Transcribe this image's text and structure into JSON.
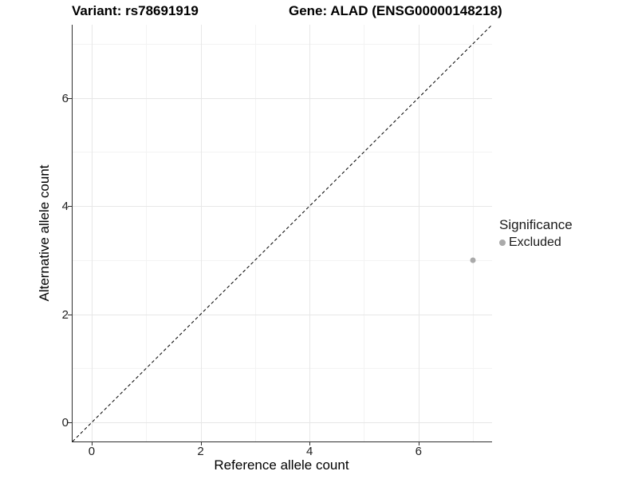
{
  "figure": {
    "title_left": "Variant: rs78691919",
    "title_right": "Gene: ALAD (ENSG00000148218)"
  },
  "chart_data": {
    "type": "scatter",
    "title": "Variant: rs78691919   Gene: ALAD (ENSG00000148218)",
    "xlabel": "Reference allele count",
    "ylabel": "Alternative allele count",
    "xlim": [
      -0.35,
      7.35
    ],
    "ylim": [
      -0.35,
      7.35
    ],
    "x_major_ticks": [
      0,
      2,
      4,
      6
    ],
    "y_major_ticks": [
      0,
      2,
      4,
      6
    ],
    "x_minor_ticks": [
      1,
      3,
      5,
      7
    ],
    "y_minor_ticks": [
      1,
      3,
      5,
      7
    ],
    "grid": true,
    "series": [
      {
        "name": "Excluded",
        "color": "#aaaaaa",
        "point_size": 7,
        "points": [
          {
            "x": 7,
            "y": 3
          }
        ]
      }
    ],
    "reference_line": {
      "type": "identity",
      "slope": 1,
      "intercept": 0,
      "style": "dashed",
      "color": "#000000"
    },
    "legend": {
      "title": "Significance",
      "position": "right",
      "items": [
        {
          "label": "Excluded",
          "color": "#aaaaaa"
        }
      ]
    },
    "colors": {
      "grid_major": "#e7e7e7",
      "grid_minor": "#f3f3f3",
      "axis_line": "#2f2f2f",
      "tick_label": "#1f1f1f"
    }
  }
}
